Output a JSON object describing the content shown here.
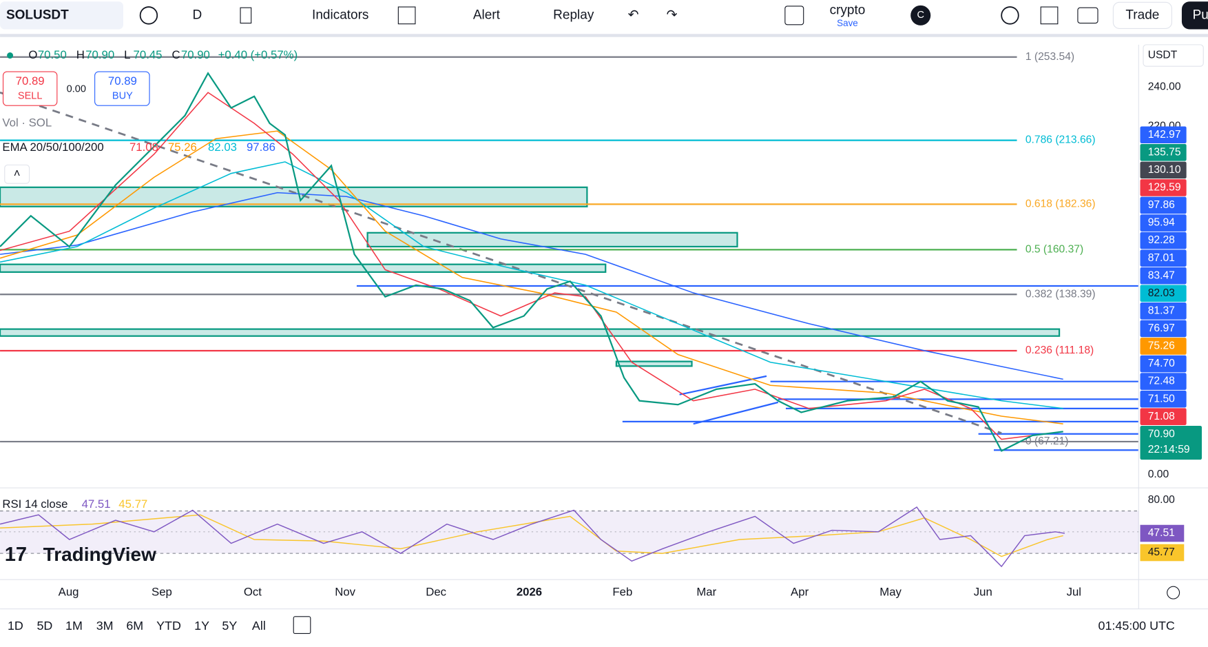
{
  "toolbar": {
    "symbol": "SOLUSDT",
    "interval": "D",
    "indicators": "Indicators",
    "alert": "Alert",
    "replay": "Replay",
    "layout_name": "crypto",
    "save": "Save",
    "avatar": "C",
    "trade": "Trade",
    "publish": "Pu"
  },
  "legend": {
    "ohlc": [
      {
        "key": "O",
        "value": "70.50"
      },
      {
        "key": "H",
        "value": "70.90"
      },
      {
        "key": "L",
        "value": "70.45"
      },
      {
        "key": "C",
        "value": "70.90"
      }
    ],
    "change": "+0.40 (+0.57%)",
    "sell_price": "70.89",
    "sell": "SELL",
    "spread": "0.00",
    "buy_price": "70.89",
    "buy": "BUY",
    "volume": "Vol · SOL",
    "ema_name": "EMA 20/50/100/200",
    "ema_values": [
      {
        "value": "71.08",
        "color": "#f23645"
      },
      {
        "value": "75.26",
        "color": "#ff9800"
      },
      {
        "value": "82.03",
        "color": "#00bcd4"
      },
      {
        "value": "97.86",
        "color": "#2962ff"
      }
    ]
  },
  "fib_levels": [
    {
      "label": "1 (253.54)",
      "color": "#787b86"
    },
    {
      "label": "0.786 (213.66)",
      "color": "#00bcd4"
    },
    {
      "label": "0.618 (182.36)",
      "color": "#f9a825"
    },
    {
      "label": "0.5 (160.37)",
      "color": "#4caf50"
    },
    {
      "label": "0.382 (138.39)",
      "color": "#787b86"
    },
    {
      "label": "0.236 (111.18)",
      "color": "#f23645"
    },
    {
      "label": "0 (67.21)",
      "color": "#787b86"
    }
  ],
  "price_axis": {
    "currency": "USDT",
    "labels": [
      "240.00",
      "220.00",
      "0.00"
    ],
    "tags": [
      {
        "label": "142.97",
        "color": "#2962ff"
      },
      {
        "label": "135.75",
        "color": "#089981"
      },
      {
        "label": "130.10",
        "color": "#434651"
      },
      {
        "label": "129.59",
        "color": "#f23645"
      },
      {
        "label": "97.86",
        "color": "#2962ff"
      },
      {
        "label": "95.94",
        "color": "#2962ff"
      },
      {
        "label": "92.28",
        "color": "#2962ff"
      },
      {
        "label": "87.01",
        "color": "#2962ff"
      },
      {
        "label": "83.47",
        "color": "#2962ff"
      },
      {
        "label": "82.03",
        "color": "#00bcd4"
      },
      {
        "label": "81.37",
        "color": "#2962ff"
      },
      {
        "label": "76.97",
        "color": "#2962ff"
      },
      {
        "label": "75.26",
        "color": "#ff9800"
      },
      {
        "label": "74.70",
        "color": "#2962ff"
      },
      {
        "label": "72.48",
        "color": "#2962ff"
      },
      {
        "label": "71.50",
        "color": "#2962ff"
      },
      {
        "label": "71.08",
        "color": "#f23645"
      },
      {
        "label": "70.90",
        "color": "#089981"
      }
    ],
    "countdown": "22:14:59"
  },
  "rsi": {
    "name": "RSI 14 close",
    "value": "47.51",
    "ma": "45.77",
    "axis": "80.00"
  },
  "logo": "TradingView",
  "time_axis": [
    "Aug",
    "Sep",
    "Oct",
    "Nov",
    "Dec",
    "2026",
    "Feb",
    "Mar",
    "Apr",
    "May",
    "Jun",
    "Jul"
  ],
  "ranges": [
    "1D",
    "5D",
    "1M",
    "3M",
    "6M",
    "YTD",
    "1Y",
    "5Y",
    "All"
  ],
  "clock": "01:45:00 UTC"
}
